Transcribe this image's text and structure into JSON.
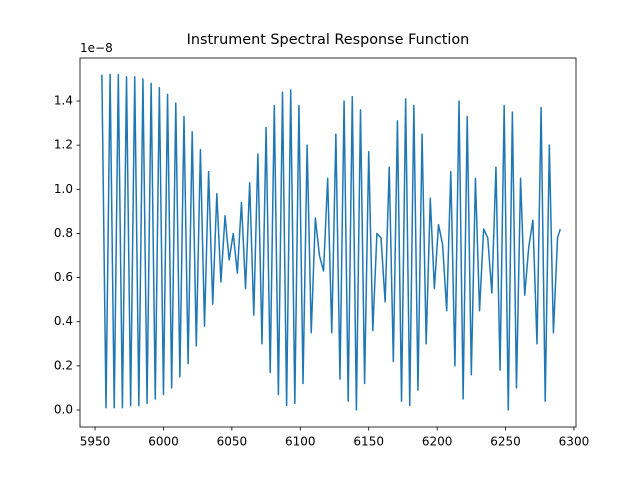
{
  "chart_data": {
    "type": "line",
    "title": "Instrument Spectral Response Function",
    "offset_label": "1e−8",
    "x": [
      5955,
      5958,
      5961,
      5964,
      5967,
      5970,
      5973,
      5976,
      5979,
      5982,
      5985,
      5988,
      5991,
      5994,
      5997,
      6000,
      6003,
      6006,
      6009,
      6012,
      6015,
      6018,
      6021,
      6024,
      6027,
      6030,
      6033,
      6036,
      6039,
      6042,
      6045,
      6048,
      6051,
      6054,
      6057,
      6060,
      6063,
      6066,
      6069,
      6072,
      6075,
      6078,
      6081,
      6084,
      6087,
      6090,
      6093,
      6096,
      6099,
      6102,
      6105,
      6108,
      6111,
      6114,
      6117,
      6120,
      6123,
      6126,
      6129,
      6132,
      6135,
      6138,
      6141,
      6144,
      6147,
      6150,
      6153,
      6156,
      6159,
      6162,
      6165,
      6168,
      6171,
      6174,
      6177,
      6180,
      6183,
      6186,
      6189,
      6192,
      6195,
      6198,
      6201,
      6204,
      6207,
      6210,
      6213,
      6216,
      6219,
      6222,
      6225,
      6228,
      6231,
      6234,
      6237,
      6240,
      6243,
      6246,
      6249,
      6252,
      6255,
      6258,
      6261,
      6264,
      6267,
      6270,
      6273,
      6276,
      6279,
      6282,
      6285,
      6288,
      6290
    ],
    "series": [
      {
        "color": "#1f77b4",
        "values": [
          1.52,
          0.01,
          1.52,
          0.01,
          1.52,
          0.01,
          1.51,
          0.02,
          1.51,
          0.02,
          1.5,
          0.03,
          1.48,
          0.05,
          1.46,
          0.07,
          1.43,
          0.1,
          1.39,
          0.15,
          1.33,
          0.21,
          1.26,
          0.29,
          1.18,
          0.38,
          1.08,
          0.48,
          0.98,
          0.58,
          0.88,
          0.68,
          0.8,
          0.62,
          0.94,
          0.55,
          1.03,
          0.43,
          1.16,
          0.3,
          1.28,
          0.17,
          1.38,
          0.07,
          1.44,
          0.02,
          1.45,
          0.03,
          1.38,
          0.12,
          1.2,
          0.35,
          0.87,
          0.7,
          0.63,
          1.05,
          0.35,
          1.25,
          0.14,
          1.4,
          0.04,
          1.42,
          0.0,
          1.36,
          0.12,
          1.17,
          0.36,
          0.8,
          0.78,
          0.49,
          1.1,
          0.22,
          1.31,
          0.04,
          1.41,
          0.02,
          1.38,
          0.09,
          1.25,
          0.3,
          0.96,
          0.55,
          0.84,
          0.75,
          0.45,
          1.08,
          0.2,
          1.4,
          0.05,
          1.33,
          0.16,
          1.05,
          0.45,
          0.82,
          0.78,
          0.53,
          1.1,
          0.18,
          1.38,
          0.0,
          1.35,
          0.1,
          1.05,
          0.52,
          0.74,
          0.86,
          0.3,
          1.37,
          0.04,
          1.2,
          0.35,
          0.78,
          0.82
        ]
      }
    ],
    "xlim": [
      5939,
      6301.5
    ],
    "xticks": [
      5950,
      6000,
      6050,
      6100,
      6150,
      6200,
      6250,
      6300
    ],
    "ylim": [
      -0.077,
      1.595
    ],
    "yticks": [
      {
        "value": 0,
        "label": "0.0"
      },
      0.2,
      0.4,
      0.6,
      0.8,
      {
        "value": 1,
        "label": "1.0"
      },
      1.2,
      1.4
    ]
  }
}
